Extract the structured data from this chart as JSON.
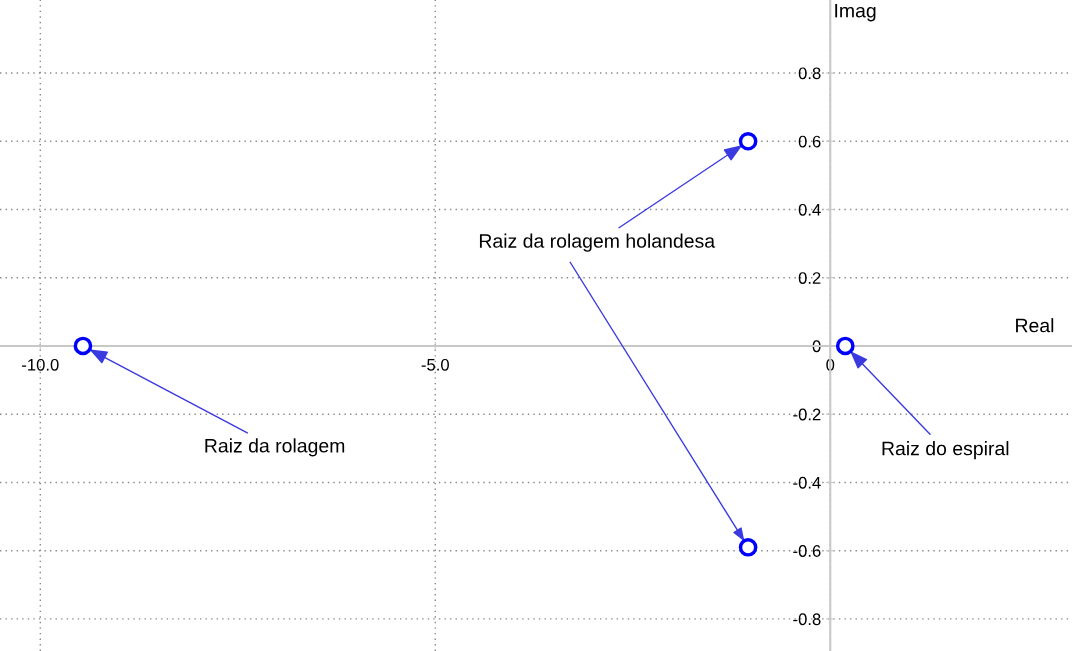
{
  "chart_data": {
    "type": "scatter",
    "xlabel": "Real",
    "ylabel": "Imag",
    "x": [
      -9.46,
      -1.04,
      -1.04,
      0.19
    ],
    "series": [
      {
        "color": "#0000ff",
        "values": [
          0,
          0.6,
          -0.59,
          0
        ]
      }
    ],
    "marker": "circle",
    "xlim": [
      -10.51,
      3.06
    ],
    "ylim": [
      -0.894,
      1.014
    ],
    "xticks": [
      {
        "value": -10,
        "label": "-10.0"
      },
      {
        "value": -5,
        "label": "-5.0"
      },
      0
    ],
    "yticks": [
      -0.8,
      -0.6,
      -0.4,
      -0.2,
      0,
      0.2,
      0.4,
      0.6,
      0.8
    ],
    "grid": true,
    "annotations": [
      {
        "text": "Raiz da rolagem",
        "x": -9.46,
        "y": 0
      },
      {
        "text": "Raiz da rolagem holandesa",
        "x": -1.04,
        "y": 0.6
      },
      {
        "text": "Raiz do espiral",
        "x": 0.19,
        "y": 0
      }
    ]
  }
}
